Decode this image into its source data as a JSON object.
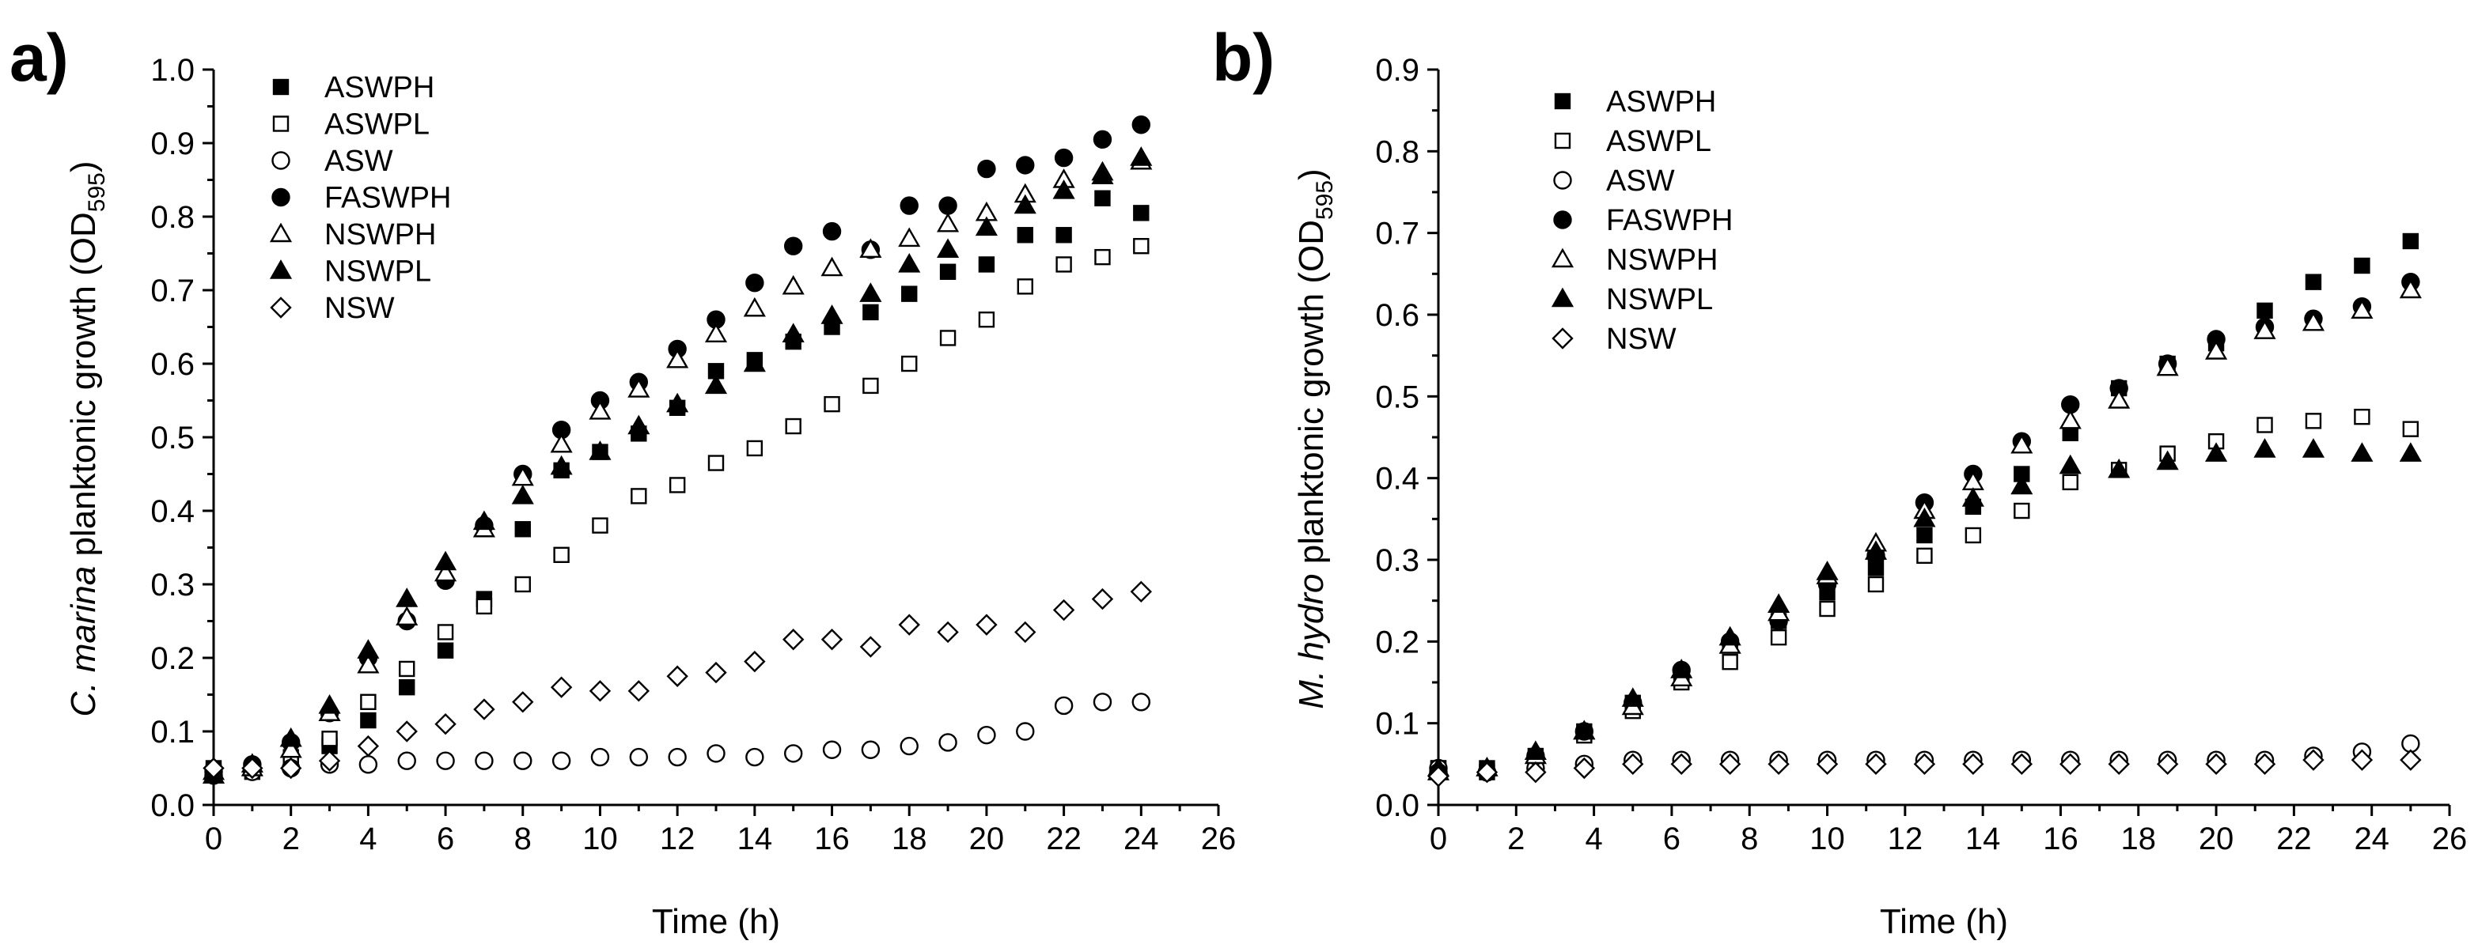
{
  "chart_data": [
    {
      "panel": "a)",
      "type": "scatter",
      "title": "",
      "xlabel": "Time (h)",
      "ylabel_parts": {
        "italic": "C. marina",
        "rest": " planktonic growth (OD",
        "sub": "595",
        "end": ")"
      },
      "xlim": [
        0,
        26
      ],
      "ylim": [
        0.0,
        1.0
      ],
      "xticks": [
        "0",
        "2",
        "4",
        "6",
        "8",
        "10",
        "12",
        "14",
        "16",
        "18",
        "20",
        "22",
        "24",
        "26"
      ],
      "yticks": [
        "0.0",
        "0.1",
        "0.2",
        "0.3",
        "0.4",
        "0.5",
        "0.6",
        "0.7",
        "0.8",
        "0.9",
        "1.0"
      ],
      "legend_position": "top-left",
      "x": [
        0,
        1,
        2,
        3,
        4,
        5,
        6,
        7,
        8,
        9,
        10,
        11,
        12,
        13,
        14,
        15,
        16,
        17,
        18,
        19,
        20,
        21,
        22,
        23,
        24
      ],
      "series": [
        {
          "name": "ASWPH",
          "marker": "square-filled",
          "values": [
            0.05,
            0.05,
            0.065,
            0.08,
            0.115,
            0.16,
            0.21,
            0.28,
            0.375,
            0.455,
            0.48,
            0.505,
            0.54,
            0.59,
            0.605,
            0.63,
            0.65,
            0.67,
            0.695,
            0.725,
            0.735,
            0.775,
            0.775,
            0.825,
            0.805
          ]
        },
        {
          "name": "ASWPL",
          "marker": "square-open",
          "values": [
            0.045,
            0.045,
            0.06,
            0.09,
            0.14,
            0.185,
            0.235,
            0.27,
            0.3,
            0.34,
            0.38,
            0.42,
            0.435,
            0.465,
            0.485,
            0.515,
            0.545,
            0.57,
            0.6,
            0.635,
            0.66,
            0.705,
            0.735,
            0.745,
            0.76
          ]
        },
        {
          "name": "ASW",
          "marker": "circle-open",
          "values": [
            0.04,
            0.045,
            0.05,
            0.055,
            0.055,
            0.06,
            0.06,
            0.06,
            0.06,
            0.06,
            0.065,
            0.065,
            0.065,
            0.07,
            0.065,
            0.07,
            0.075,
            0.075,
            0.08,
            0.085,
            0.095,
            0.1,
            0.135,
            0.14,
            0.14
          ]
        },
        {
          "name": "FASWPH",
          "marker": "circle-filled",
          "values": [
            0.045,
            0.055,
            0.085,
            0.125,
            0.2,
            0.25,
            0.305,
            0.38,
            0.45,
            0.51,
            0.55,
            0.575,
            0.62,
            0.66,
            0.71,
            0.76,
            0.78,
            0.755,
            0.815,
            0.815,
            0.865,
            0.87,
            0.88,
            0.905,
            0.925
          ]
        },
        {
          "name": "NSWPH",
          "marker": "triangle-open",
          "values": [
            0.045,
            0.05,
            0.075,
            0.125,
            0.19,
            0.255,
            0.315,
            0.375,
            0.445,
            0.49,
            0.535,
            0.565,
            0.605,
            0.64,
            0.675,
            0.705,
            0.73,
            0.755,
            0.77,
            0.79,
            0.805,
            0.83,
            0.85,
            0.86,
            0.875
          ]
        },
        {
          "name": "NSWPL",
          "marker": "triangle-filled",
          "values": [
            0.04,
            0.055,
            0.09,
            0.135,
            0.21,
            0.28,
            0.33,
            0.385,
            0.42,
            0.46,
            0.48,
            0.515,
            0.545,
            0.57,
            0.6,
            0.64,
            0.665,
            0.695,
            0.735,
            0.755,
            0.785,
            0.815,
            0.835,
            0.855,
            0.88
          ]
        },
        {
          "name": "NSW",
          "marker": "diamond-open",
          "values": [
            0.05,
            0.05,
            0.05,
            0.06,
            0.08,
            0.1,
            0.11,
            0.13,
            0.14,
            0.16,
            0.155,
            0.155,
            0.175,
            0.18,
            0.195,
            0.225,
            0.225,
            0.215,
            0.245,
            0.235,
            0.245,
            0.235,
            0.265,
            0.28,
            0.29
          ]
        }
      ]
    },
    {
      "panel": "b)",
      "type": "scatter",
      "title": "",
      "xlabel": "Time (h)",
      "ylabel_parts": {
        "italic": "M. hydro",
        "rest": " planktonic growth (OD",
        "sub": "595",
        "end": ")"
      },
      "xlim": [
        0,
        26
      ],
      "ylim": [
        0.0,
        0.9
      ],
      "xticks": [
        "0",
        "2",
        "4",
        "6",
        "8",
        "10",
        "12",
        "14",
        "16",
        "18",
        "20",
        "22",
        "24",
        "26"
      ],
      "yticks": [
        "0.0",
        "0.1",
        "0.2",
        "0.3",
        "0.4",
        "0.5",
        "0.6",
        "0.7",
        "0.8",
        "0.9"
      ],
      "legend_position": "top-left",
      "x": [
        0,
        1.25,
        2.5,
        3.75,
        5,
        6.25,
        7.5,
        8.75,
        10,
        11.25,
        12.5,
        13.75,
        15,
        16.25,
        17.5,
        18.75,
        20,
        21.25,
        22.5,
        23.75,
        25
      ],
      "series": [
        {
          "name": "ASWPH",
          "marker": "square-filled",
          "values": [
            0.045,
            0.045,
            0.06,
            0.09,
            0.125,
            0.16,
            0.195,
            0.225,
            0.26,
            0.29,
            0.33,
            0.365,
            0.405,
            0.455,
            0.51,
            0.54,
            0.565,
            0.605,
            0.64,
            0.66,
            0.69
          ]
        },
        {
          "name": "ASWPL",
          "marker": "square-open",
          "values": [
            0.045,
            0.04,
            0.055,
            0.085,
            0.115,
            0.15,
            0.175,
            0.205,
            0.24,
            0.27,
            0.305,
            0.33,
            0.36,
            0.395,
            0.41,
            0.43,
            0.445,
            0.465,
            0.47,
            0.475,
            0.46
          ]
        },
        {
          "name": "ASW",
          "marker": "circle-open",
          "values": [
            0.045,
            0.04,
            0.045,
            0.05,
            0.055,
            0.055,
            0.055,
            0.055,
            0.055,
            0.055,
            0.055,
            0.055,
            0.055,
            0.055,
            0.055,
            0.055,
            0.055,
            0.055,
            0.06,
            0.065,
            0.075
          ]
        },
        {
          "name": "FASWPH",
          "marker": "circle-filled",
          "values": [
            0.04,
            0.04,
            0.06,
            0.09,
            0.125,
            0.165,
            0.2,
            0.225,
            0.27,
            0.305,
            0.37,
            0.405,
            0.445,
            0.49,
            0.51,
            0.54,
            0.57,
            0.585,
            0.595,
            0.61,
            0.64
          ]
        },
        {
          "name": "NSWPH",
          "marker": "triangle-open",
          "values": [
            0.04,
            0.045,
            0.06,
            0.09,
            0.12,
            0.155,
            0.195,
            0.235,
            0.28,
            0.32,
            0.36,
            0.395,
            0.44,
            0.47,
            0.495,
            0.535,
            0.555,
            0.58,
            0.59,
            0.605,
            0.63
          ]
        },
        {
          "name": "NSWPL",
          "marker": "triangle-filled",
          "values": [
            0.045,
            0.045,
            0.065,
            0.09,
            0.13,
            0.165,
            0.205,
            0.245,
            0.285,
            0.31,
            0.35,
            0.375,
            0.39,
            0.415,
            0.41,
            0.42,
            0.43,
            0.435,
            0.435,
            0.43,
            0.43
          ]
        },
        {
          "name": "NSW",
          "marker": "diamond-open",
          "values": [
            0.035,
            0.04,
            0.04,
            0.045,
            0.05,
            0.05,
            0.05,
            0.05,
            0.05,
            0.05,
            0.05,
            0.05,
            0.05,
            0.05,
            0.05,
            0.05,
            0.05,
            0.05,
            0.055,
            0.055,
            0.055
          ]
        }
      ]
    }
  ]
}
